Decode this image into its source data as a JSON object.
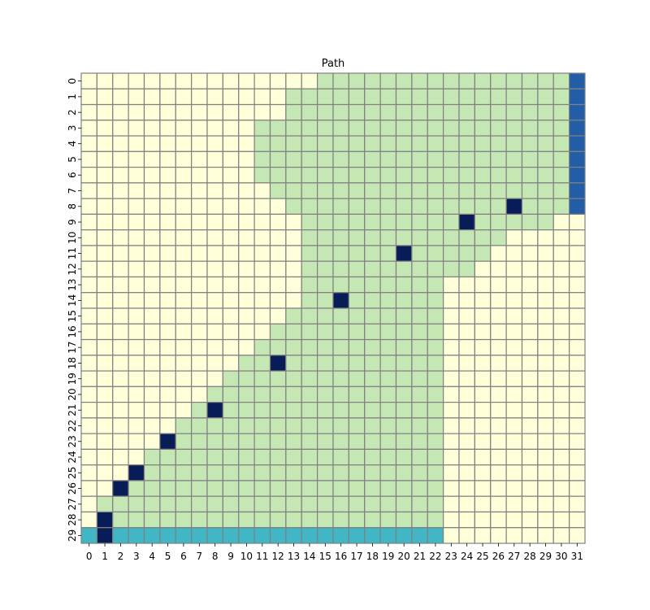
{
  "chart_data": {
    "type": "heatmap",
    "title": "Path",
    "xlabel": "",
    "ylabel": "",
    "x_ticks": [
      "0",
      "1",
      "2",
      "3",
      "4",
      "5",
      "6",
      "7",
      "8",
      "9",
      "10",
      "11",
      "12",
      "13",
      "14",
      "15",
      "16",
      "17",
      "18",
      "19",
      "20",
      "21",
      "22",
      "23",
      "24",
      "25",
      "26",
      "27",
      "28",
      "29",
      "30",
      "31"
    ],
    "y_ticks": [
      "0",
      "1",
      "2",
      "3",
      "4",
      "5",
      "6",
      "7",
      "8",
      "9",
      "10",
      "11",
      "12",
      "13",
      "14",
      "15",
      "16",
      "17",
      "18",
      "19",
      "20",
      "21",
      "22",
      "23",
      "24",
      "25",
      "26",
      "27",
      "28",
      "29"
    ],
    "n_cols": 32,
    "n_rows": 30,
    "colorbar": false,
    "grid": true,
    "values_legend": {
      "0": "empty",
      "1": "region",
      "2": "start row",
      "3": "goal column",
      "4": "path point"
    },
    "colors": {
      "0": "#ffffd9",
      "1": "#c5e7b4",
      "2": "#41b6c4",
      "3": "#225ea8",
      "4": "#081d58",
      "grid": "#808080"
    },
    "region_start_col": [
      15,
      13,
      13,
      11,
      11,
      11,
      11,
      12,
      13,
      14,
      14,
      14,
      14,
      14,
      14,
      13,
      12,
      11,
      10,
      9,
      8,
      7,
      6,
      5,
      4,
      3,
      2,
      1,
      1,
      0
    ],
    "region_end_col": [
      30,
      30,
      30,
      30,
      30,
      30,
      30,
      30,
      30,
      29,
      26,
      25,
      24,
      22,
      22,
      22,
      22,
      22,
      22,
      22,
      22,
      22,
      22,
      22,
      22,
      22,
      22,
      22,
      22,
      22
    ],
    "bottom_row_value": 2,
    "right_column": {
      "col": 31,
      "rows": [
        0,
        1,
        2,
        3,
        4,
        5,
        6,
        7,
        8
      ],
      "value": 3
    },
    "path_points": [
      {
        "x": 1,
        "y": 29
      },
      {
        "x": 1,
        "y": 28
      },
      {
        "x": 2,
        "y": 26
      },
      {
        "x": 3,
        "y": 25
      },
      {
        "x": 5,
        "y": 23
      },
      {
        "x": 8,
        "y": 21
      },
      {
        "x": 12,
        "y": 18
      },
      {
        "x": 16,
        "y": 14
      },
      {
        "x": 20,
        "y": 11
      },
      {
        "x": 24,
        "y": 9
      },
      {
        "x": 27,
        "y": 8
      }
    ]
  }
}
